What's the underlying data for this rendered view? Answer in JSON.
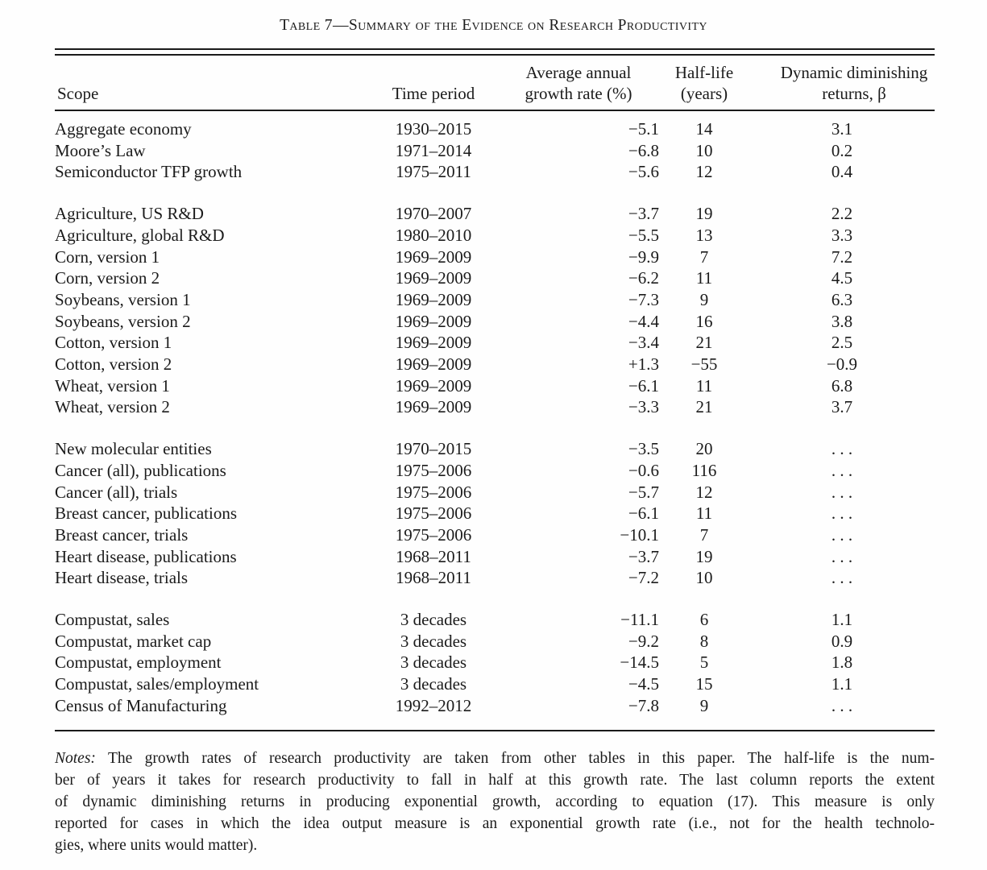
{
  "title": "Table 7—Summary of the Evidence on Research Productivity",
  "table": {
    "columns": [
      {
        "key": "scope",
        "label": "Scope"
      },
      {
        "key": "time",
        "label": "Time period"
      },
      {
        "key": "growth",
        "label": "Average annual\ngrowth rate (%)"
      },
      {
        "key": "halflife",
        "label": "Half-life\n(years)"
      },
      {
        "key": "returns",
        "label": "Dynamic diminishing\nreturns, β"
      }
    ],
    "groups": [
      {
        "rows": [
          [
            "Aggregate economy",
            "1930–2015",
            "−5.1",
            "14",
            "3.1"
          ],
          [
            "Moore’s Law",
            "1971–2014",
            "−6.8",
            "10",
            "0.2"
          ],
          [
            "Semiconductor TFP growth",
            "1975–2011",
            "−5.6",
            "12",
            "0.4"
          ]
        ]
      },
      {
        "rows": [
          [
            "Agriculture, US R&D",
            "1970–2007",
            "−3.7",
            "19",
            "2.2"
          ],
          [
            "Agriculture, global R&D",
            "1980–2010",
            "−5.5",
            "13",
            "3.3"
          ],
          [
            "Corn, version 1",
            "1969–2009",
            "−9.9",
            "7",
            "7.2"
          ],
          [
            "Corn, version 2",
            "1969–2009",
            "−6.2",
            "11",
            "4.5"
          ],
          [
            "Soybeans, version 1",
            "1969–2009",
            "−7.3",
            "9",
            "6.3"
          ],
          [
            "Soybeans, version 2",
            "1969–2009",
            "−4.4",
            "16",
            "3.8"
          ],
          [
            "Cotton, version 1",
            "1969–2009",
            "−3.4",
            "21",
            "2.5"
          ],
          [
            "Cotton, version 2",
            "1969–2009",
            "+1.3",
            "−55",
            "−0.9"
          ],
          [
            "Wheat, version 1",
            "1969–2009",
            "−6.1",
            "11",
            "6.8"
          ],
          [
            "Wheat, version 2",
            "1969–2009",
            "−3.3",
            "21",
            "3.7"
          ]
        ]
      },
      {
        "rows": [
          [
            "New molecular entities",
            "1970–2015",
            "−3.5",
            "20",
            ". . ."
          ],
          [
            "Cancer (all), publications",
            "1975–2006",
            "−0.6",
            "116",
            ". . ."
          ],
          [
            "Cancer (all), trials",
            "1975–2006",
            "−5.7",
            "12",
            ". . ."
          ],
          [
            "Breast cancer, publications",
            "1975–2006",
            "−6.1",
            "11",
            ". . ."
          ],
          [
            "Breast cancer, trials",
            "1975–2006",
            "−10.1",
            "7",
            ". . ."
          ],
          [
            "Heart disease, publications",
            "1968–2011",
            "−3.7",
            "19",
            ". . ."
          ],
          [
            "Heart disease, trials",
            "1968–2011",
            "−7.2",
            "10",
            ". . ."
          ]
        ]
      },
      {
        "rows": [
          [
            "Compustat, sales",
            "3 decades",
            "−11.1",
            "6",
            "1.1"
          ],
          [
            "Compustat, market cap",
            "3 decades",
            "−9.2",
            "8",
            "0.9"
          ],
          [
            "Compustat, employment",
            "3 decades",
            "−14.5",
            "5",
            "1.8"
          ],
          [
            "Compustat, sales/employment",
            "3 decades",
            "−4.5",
            "15",
            "1.1"
          ],
          [
            "Census of Manufacturing",
            "1992–2012",
            "−7.8",
            "9",
            ". . ."
          ]
        ]
      }
    ]
  },
  "notes": {
    "label": "Notes:",
    "lines": [
      "The growth rates of research productivity are taken from other tables in this paper. The half-life is the num-",
      "ber of years it takes for research productivity to fall in half at this growth rate. The last column reports the extent",
      "of dynamic diminishing returns in producing exponential growth, according to equation (17). This measure is only",
      "reported for cases in which the idea output measure is an exponential growth rate (i.e., not for the health technolo-",
      "gies, where units would matter)."
    ]
  },
  "colors": {
    "background": "#fefefe",
    "text": "#1b1b1b",
    "rule": "#1a1a1a"
  }
}
